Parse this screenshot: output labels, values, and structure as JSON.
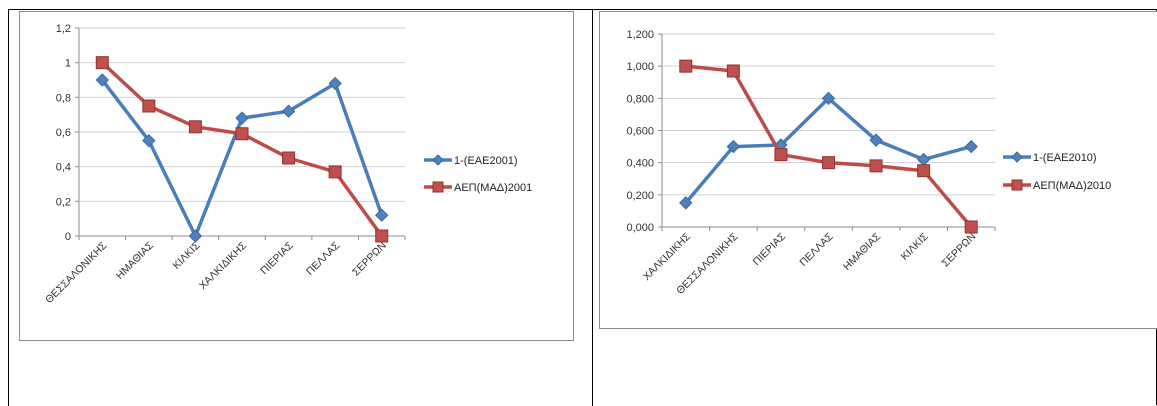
{
  "chart_data": [
    {
      "type": "line",
      "categories": [
        "ΘΕΣΣΑΛΟΝΙΚΗΣ",
        "ΗΜΑΘΙΑΣ",
        "ΚΙΛΚΙΣ",
        "ΧΑΛΚΙΔΙΚΗΣ",
        "ΠΙΕΡΙΑΣ",
        "ΠΕΛΛΑΣ",
        "ΣΕΡΡΩΝ"
      ],
      "yticks": [
        "0",
        "0,2",
        "0,4",
        "0,6",
        "0,8",
        "1",
        "1,2"
      ],
      "ylim": [
        0,
        1.2
      ],
      "grid": true,
      "legend_position": "right",
      "series": [
        {
          "name": "1-(ΕΑΕ2001)",
          "color": "#4a7ebb",
          "marker": "diamond",
          "values": [
            0.9,
            0.55,
            0.0,
            0.68,
            0.72,
            0.88,
            0.12
          ]
        },
        {
          "name": "ΑΕΠ(ΜΑΔ)2001",
          "color": "#be4b48",
          "marker": "square",
          "values": [
            1.0,
            0.75,
            0.63,
            0.59,
            0.45,
            0.37,
            0.0
          ]
        }
      ]
    },
    {
      "type": "line",
      "categories": [
        "ΧΑΛΚΙΔΙΚΗΣ",
        "ΘΕΣΣΑΛΟΝΙΚΗΣ",
        "ΠΙΕΡΙΑΣ",
        "ΠΕΛΛΑΣ",
        "ΗΜΑΘΙΑΣ",
        "ΚΙΛΚΙΣ",
        "ΣΕΡΡΩΝ"
      ],
      "yticks": [
        "0,000",
        "0,200",
        "0,400",
        "0,600",
        "0,800",
        "1,000",
        "1,200"
      ],
      "ylim": [
        0,
        1.2
      ],
      "grid": true,
      "legend_position": "right",
      "series": [
        {
          "name": "1-(ΕΑΕ2010)",
          "color": "#4a7ebb",
          "marker": "diamond",
          "values": [
            0.15,
            0.5,
            0.51,
            0.8,
            0.54,
            0.42,
            0.5
          ]
        },
        {
          "name": "ΑΕΠ(ΜΑΔ)2010",
          "color": "#be4b48",
          "marker": "square",
          "values": [
            1.0,
            0.97,
            0.45,
            0.4,
            0.38,
            0.35,
            0.0
          ]
        }
      ]
    }
  ]
}
